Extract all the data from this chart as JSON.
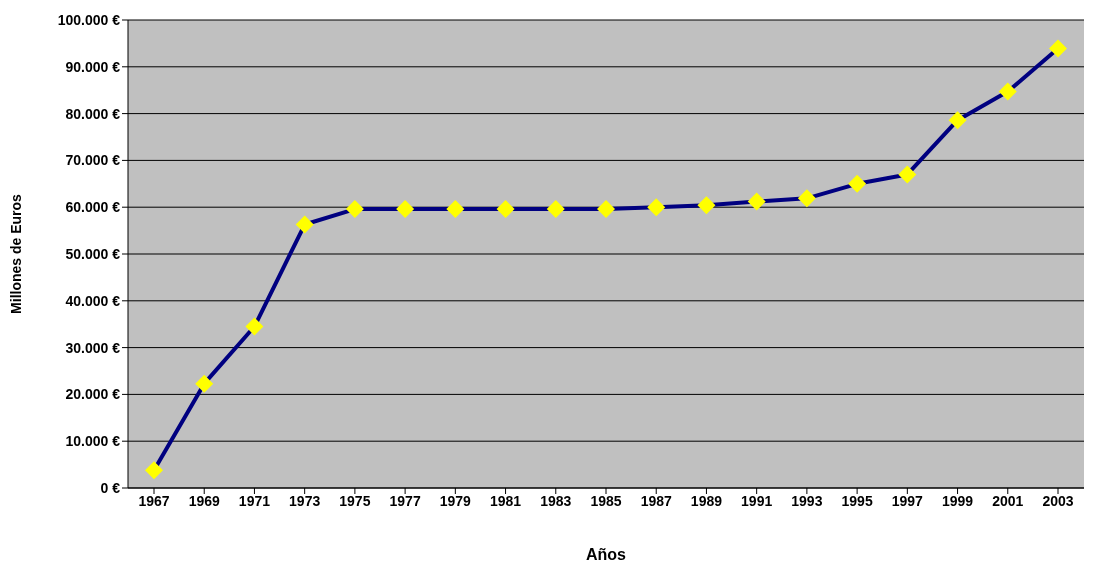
{
  "chart_data": {
    "type": "line",
    "xlabel": "Años",
    "ylabel": "Millones de Euros",
    "categories": [
      "1967",
      "1969",
      "1971",
      "1973",
      "1975",
      "1977",
      "1979",
      "1981",
      "1983",
      "1985",
      "1987",
      "1989",
      "1991",
      "1993",
      "1995",
      "1997",
      "1999",
      "2001",
      "2003"
    ],
    "series": [
      {
        "color": "#000080",
        "values": [
          3800,
          22300,
          34500,
          56300,
          59600,
          59600,
          59600,
          59600,
          59600,
          59600,
          60000,
          60400,
          61200,
          61900,
          65000,
          67000,
          78600,
          84700,
          93900
        ]
      }
    ],
    "ylim": [
      0,
      100000
    ],
    "yticks": [
      {
        "value": 0,
        "label": "0 €"
      },
      {
        "value": 10000,
        "label": "10.000 €"
      },
      {
        "value": 20000,
        "label": "20.000 €"
      },
      {
        "value": 30000,
        "label": "30.000 €"
      },
      {
        "value": 40000,
        "label": "40.000 €"
      },
      {
        "value": 50000,
        "label": "50.000 €"
      },
      {
        "value": 60000,
        "label": "60.000 €"
      },
      {
        "value": 70000,
        "label": "70.000 €"
      },
      {
        "value": 80000,
        "label": "80.000 €"
      },
      {
        "value": 90000,
        "label": "90.000 €"
      },
      {
        "value": 100000,
        "label": "100.000 €"
      }
    ],
    "grid": "y",
    "marker": "diamond"
  }
}
